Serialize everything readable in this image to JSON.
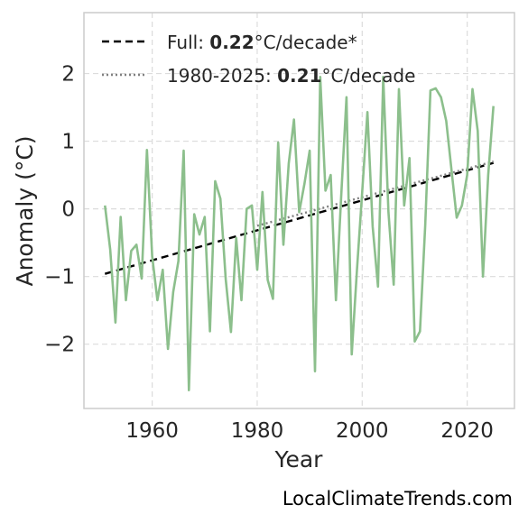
{
  "chart_data": {
    "type": "line",
    "xlabel": "Year",
    "ylabel": "Anomaly (°C)",
    "xlim": [
      1947,
      2029
    ],
    "ylim": [
      -2.95,
      2.9
    ],
    "xticks": [
      1960,
      1980,
      2000,
      2020
    ],
    "yticks": [
      -2,
      -1,
      0,
      1,
      2
    ],
    "ytick_labels": [
      "−2",
      "−1",
      "0",
      "1",
      "2"
    ],
    "grid": true,
    "legend_position": "top-left",
    "colors": {
      "series": "#8cbf8c",
      "full_trend": "#000000",
      "recent_trend": "#808080"
    },
    "series": [
      {
        "x": [
          1951,
          1952,
          1953,
          1954,
          1955,
          1956,
          1957,
          1958,
          1959,
          1960,
          1961,
          1962,
          1963,
          1964,
          1965,
          1966,
          1967,
          1968,
          1969,
          1970,
          1971,
          1972,
          1973,
          1974,
          1975,
          1976,
          1977,
          1978,
          1979,
          1980,
          1981,
          1982,
          1983,
          1984,
          1985,
          1986,
          1987,
          1988,
          1989,
          1990,
          1991,
          1992,
          1993,
          1994,
          1995,
          1996,
          1997,
          1998,
          1999,
          2000,
          2001,
          2002,
          2003,
          2004,
          2005,
          2006,
          2007,
          2008,
          2009,
          2010,
          2011,
          2012,
          2013,
          2014,
          2015,
          2016,
          2017,
          2018,
          2019,
          2020,
          2021,
          2022,
          2023,
          2024,
          2025
        ],
        "values": [
          0.05,
          -0.6,
          -1.68,
          -0.12,
          -1.35,
          -0.62,
          -0.53,
          -1.03,
          0.87,
          -0.7,
          -1.35,
          -0.9,
          -2.07,
          -1.23,
          -0.77,
          0.86,
          -2.68,
          -0.08,
          -0.38,
          -0.12,
          -1.81,
          0.41,
          0.15,
          -1.04,
          -1.82,
          -0.43,
          -1.35,
          0.0,
          0.05,
          -0.9,
          0.25,
          -1.05,
          -1.33,
          0.98,
          -0.53,
          0.67,
          1.32,
          -0.05,
          0.37,
          0.86,
          -2.4,
          1.95,
          0.27,
          0.5,
          -1.35,
          0.18,
          1.65,
          -2.15,
          -0.9,
          0.25,
          1.43,
          -0.26,
          -1.15,
          1.95,
          -0.05,
          -1.12,
          1.77,
          0.05,
          0.75,
          -1.96,
          -1.81,
          -0.25,
          1.75,
          1.78,
          1.65,
          1.3,
          0.58,
          -0.13,
          0.05,
          0.5,
          1.77,
          1.15,
          -1.0,
          0.5,
          1.52
        ]
      }
    ],
    "trend_lines": [
      {
        "name": "full",
        "x": [
          1951,
          2025
        ],
        "y": [
          -0.96,
          0.68
        ]
      },
      {
        "name": "recent",
        "x": [
          1980,
          2025
        ],
        "y": [
          -0.25,
          0.7
        ]
      }
    ],
    "legend": [
      {
        "prefix": "Full: ",
        "value": "0.22",
        "suffix": "°C/decade*"
      },
      {
        "prefix": "1980-2025: ",
        "value": "0.21",
        "suffix": "°C/decade"
      }
    ]
  },
  "watermark": "LocalClimateTrends.com"
}
